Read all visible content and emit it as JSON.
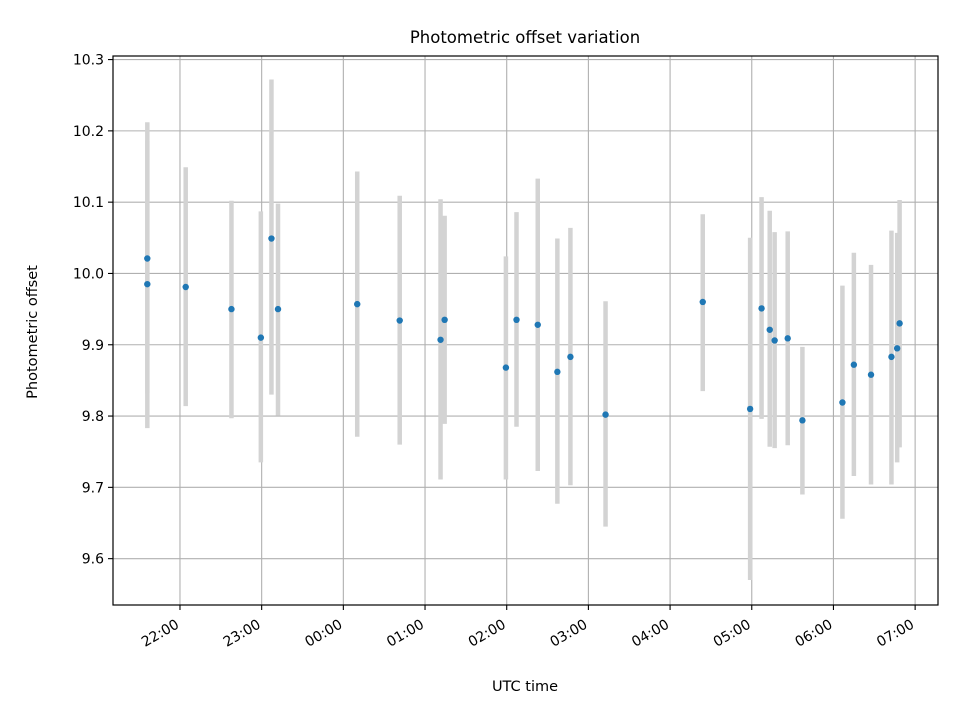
{
  "chart_data": {
    "type": "scatter",
    "title": "Photometric offset variation",
    "xlabel": "UTC time",
    "ylabel": "Photometric offset",
    "x_unit": "hours UTC (values past 24 are after midnight)",
    "xlim": [
      21.18,
      31.28
    ],
    "ylim": [
      9.535,
      10.305
    ],
    "x_ticks": [
      {
        "value": 22,
        "label": "22:00"
      },
      {
        "value": 23,
        "label": "23:00"
      },
      {
        "value": 24,
        "label": "00:00"
      },
      {
        "value": 25,
        "label": "01:00"
      },
      {
        "value": 26,
        "label": "02:00"
      },
      {
        "value": 27,
        "label": "03:00"
      },
      {
        "value": 28,
        "label": "04:00"
      },
      {
        "value": 29,
        "label": "05:00"
      },
      {
        "value": 30,
        "label": "06:00"
      },
      {
        "value": 31,
        "label": "07:00"
      }
    ],
    "y_ticks": [
      {
        "value": 9.6,
        "label": "9.6"
      },
      {
        "value": 9.7,
        "label": "9.7"
      },
      {
        "value": 9.8,
        "label": "9.8"
      },
      {
        "value": 9.9,
        "label": "9.9"
      },
      {
        "value": 10.0,
        "label": "10.0"
      },
      {
        "value": 10.1,
        "label": "10.1"
      },
      {
        "value": 10.2,
        "label": "10.2"
      },
      {
        "value": 10.3,
        "label": "10.3"
      }
    ],
    "grid": true,
    "colors": {
      "point": "#1f77b4",
      "errorbar": "#d3d3d3",
      "grid": "#b0b0b0",
      "axis": "#000000"
    },
    "points": [
      {
        "x": 21.6,
        "y": 10.021,
        "err_low": 9.832,
        "err_high": 10.212
      },
      {
        "x": 21.6,
        "y": 9.985,
        "err_low": 9.783,
        "err_high": 10.186
      },
      {
        "x": 22.07,
        "y": 9.981,
        "err_low": 9.814,
        "err_high": 10.149
      },
      {
        "x": 22.63,
        "y": 9.95,
        "err_low": 9.797,
        "err_high": 10.102
      },
      {
        "x": 22.99,
        "y": 9.91,
        "err_low": 9.735,
        "err_high": 10.087
      },
      {
        "x": 23.12,
        "y": 10.049,
        "err_low": 9.83,
        "err_high": 10.272
      },
      {
        "x": 23.2,
        "y": 9.95,
        "err_low": 9.801,
        "err_high": 10.098
      },
      {
        "x": 24.17,
        "y": 9.957,
        "err_low": 9.771,
        "err_high": 10.143
      },
      {
        "x": 24.69,
        "y": 9.934,
        "err_low": 9.76,
        "err_high": 10.109
      },
      {
        "x": 25.19,
        "y": 9.907,
        "err_low": 9.711,
        "err_high": 10.104
      },
      {
        "x": 25.24,
        "y": 9.935,
        "err_low": 9.789,
        "err_high": 10.081
      },
      {
        "x": 25.99,
        "y": 9.868,
        "err_low": 9.711,
        "err_high": 10.024
      },
      {
        "x": 26.12,
        "y": 9.935,
        "err_low": 9.785,
        "err_high": 10.086
      },
      {
        "x": 26.38,
        "y": 9.928,
        "err_low": 9.723,
        "err_high": 10.133
      },
      {
        "x": 26.62,
        "y": 9.862,
        "err_low": 9.677,
        "err_high": 10.049
      },
      {
        "x": 26.78,
        "y": 9.883,
        "err_low": 9.703,
        "err_high": 10.064
      },
      {
        "x": 27.21,
        "y": 9.802,
        "err_low": 9.645,
        "err_high": 9.961
      },
      {
        "x": 28.4,
        "y": 9.96,
        "err_low": 9.835,
        "err_high": 10.083
      },
      {
        "x": 28.98,
        "y": 9.81,
        "err_low": 9.57,
        "err_high": 10.05
      },
      {
        "x": 29.12,
        "y": 9.951,
        "err_low": 9.796,
        "err_high": 10.107
      },
      {
        "x": 29.22,
        "y": 9.921,
        "err_low": 9.757,
        "err_high": 10.088
      },
      {
        "x": 29.28,
        "y": 9.906,
        "err_low": 9.755,
        "err_high": 10.058
      },
      {
        "x": 29.44,
        "y": 9.909,
        "err_low": 9.759,
        "err_high": 10.059
      },
      {
        "x": 29.62,
        "y": 9.794,
        "err_low": 9.69,
        "err_high": 9.897
      },
      {
        "x": 30.11,
        "y": 9.819,
        "err_low": 9.656,
        "err_high": 9.983
      },
      {
        "x": 30.25,
        "y": 9.872,
        "err_low": 9.716,
        "err_high": 10.029
      },
      {
        "x": 30.46,
        "y": 9.858,
        "err_low": 9.704,
        "err_high": 10.012
      },
      {
        "x": 30.71,
        "y": 9.883,
        "err_low": 9.704,
        "err_high": 10.06
      },
      {
        "x": 30.78,
        "y": 9.895,
        "err_low": 9.735,
        "err_high": 10.057
      },
      {
        "x": 30.81,
        "y": 9.93,
        "err_low": 9.756,
        "err_high": 10.103
      }
    ]
  }
}
